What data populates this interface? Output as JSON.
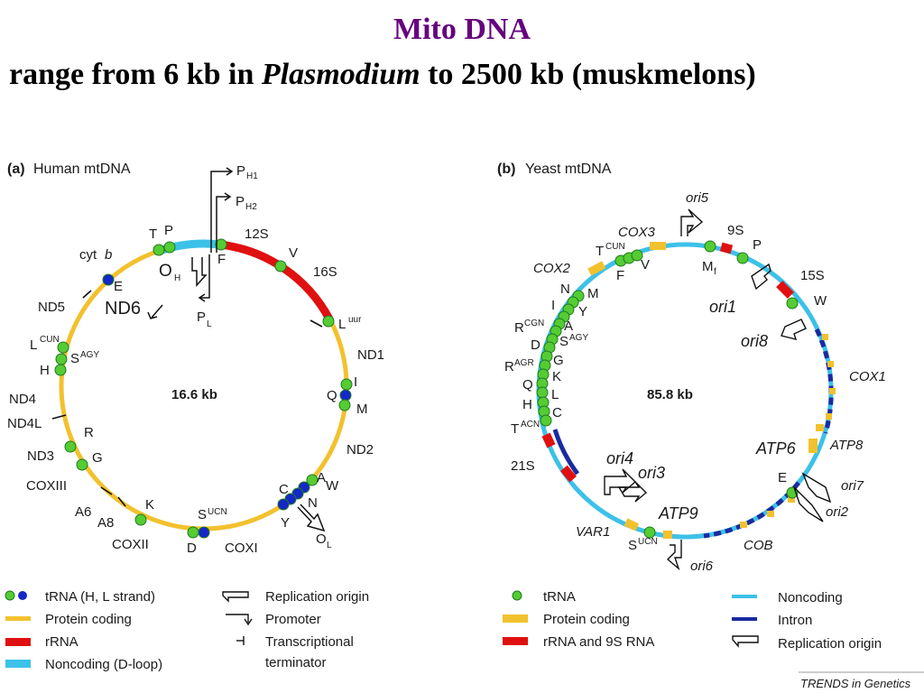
{
  "title": "Mito DNA",
  "subtitle": {
    "pre": "range from 6 kb in ",
    "italic": "Plasmodium",
    "post": " to 2500 kb (muskmelons)"
  },
  "colors": {
    "title": "#66007f",
    "trna_green": "#55cc33",
    "trna_blue": "#1428c8",
    "protein": "#f2c12e",
    "rrna": "#e01010",
    "noncoding": "#3cc1e8",
    "intron": "#1a2aa0"
  },
  "panel_a": {
    "tag": "(a)",
    "title": "Human mtDNA",
    "size": "16.6 kb",
    "labels": {
      "cytb": "cyt",
      "cytb_i": "b",
      "nd5": "ND5",
      "nd6": "ND6",
      "nd4": "ND4",
      "nd4l": "ND4L",
      "nd3": "ND3",
      "coxiii": "COXIII",
      "a6": "A6",
      "a8": "A8",
      "coxii": "COXII",
      "coxi": "COXI",
      "nd2": "ND2",
      "nd1": "ND1",
      "s12": "12S",
      "s16": "16S",
      "t": "T",
      "p": "P",
      "f": "F",
      "v": "V",
      "e": "E",
      "l": "L",
      "l_sup": "CUN",
      "luur": "L",
      "luur_sup": "uur",
      "h": "H",
      "s": "S",
      "s_sup": "AGY",
      "r": "R",
      "g": "G",
      "k": "K",
      "d": "D",
      "scn": "S",
      "scn_sup": "UCN",
      "i": "I",
      "q": "Q",
      "m": "M",
      "a": "A",
      "w": "W",
      "c": "C",
      "n": "N",
      "y": "Y",
      "oh": "O",
      "oh_sub": "H",
      "ol": "O",
      "ol_sub": "L",
      "ph1": "P",
      "ph1_sub": "H1",
      "ph2": "P",
      "ph2_sub": "H2",
      "pl": "P",
      "pl_sub": "L"
    },
    "legend": [
      "tRNA (H, L strand)",
      "Protein coding",
      "rRNA",
      "Noncoding (D-loop)",
      "Replication origin",
      "Promoter",
      "Transcriptional",
      "terminator"
    ]
  },
  "panel_b": {
    "tag": "(b)",
    "title": "Yeast mtDNA",
    "size": "85.8 kb",
    "labels": {
      "cox3": "COX3",
      "cox2": "COX2",
      "cox1": "COX1",
      "atp6": "ATP6",
      "atp8": "ATP8",
      "atp9": "ATP9",
      "cob": "COB",
      "var1": "VAR1",
      "s21": "21S",
      "s15": "15S",
      "s9": "9S",
      "ori1": "ori1",
      "ori2": "ori2",
      "ori3": "ori3",
      "ori4": "ori4",
      "ori5": "ori5",
      "ori6": "ori6",
      "ori7": "ori7",
      "ori8": "ori8",
      "p": "P",
      "w": "W",
      "e": "E",
      "mf": "M",
      "mf_sub": "f",
      "f": "F",
      "v": "V",
      "tcun": "T",
      "tcun_sup": "CUN",
      "n": "N",
      "m": "M",
      "i": "I",
      "y": "Y",
      "rcgn": "R",
      "rcgn_sup": "CGN",
      "a": "A",
      "d": "D",
      "sagy": "S",
      "sagy_sup": "AGY",
      "ragr": "R",
      "ragr_sup": "AGR",
      "g": "G",
      "k": "K",
      "q": "Q",
      "l": "L",
      "h": "H",
      "c": "C",
      "tacn": "T",
      "tacn_sup": "ACN",
      "sucn": "S",
      "sucn_sup": "UCN"
    },
    "legend": [
      "tRNA",
      "Protein coding",
      "rRNA and 9S RNA",
      "Noncoding",
      "Intron",
      "Replication origin"
    ]
  },
  "credit": "TRENDS in Genetics"
}
